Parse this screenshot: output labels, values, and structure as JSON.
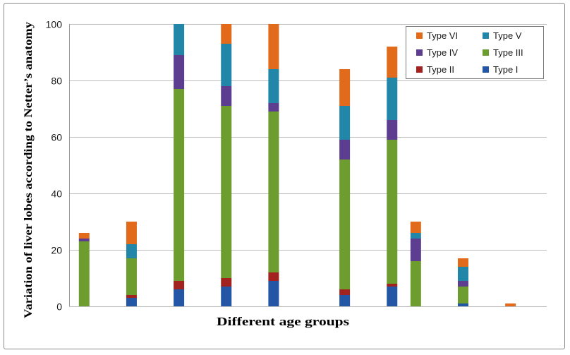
{
  "chart_data": {
    "type": "bar",
    "stacked": true,
    "xlabel": "Different age groups",
    "ylabel": "Variation of liver lobes according to Netter’s anatomy",
    "ylim": [
      0,
      100
    ],
    "yticks": [
      0,
      20,
      40,
      60,
      80,
      100
    ],
    "grid": true,
    "legend": "top-right",
    "categories": [
      "",
      "",
      "",
      "",
      "",
      "",
      "",
      "",
      "",
      "",
      "",
      "",
      "",
      "",
      "",
      "",
      "",
      "",
      "",
      ""
    ],
    "series": [
      {
        "name": "Type I",
        "color": "#2356A5",
        "values": [
          0,
          0,
          3,
          0,
          6,
          0,
          7,
          0,
          9,
          0,
          0,
          4,
          0,
          7,
          0,
          0,
          1,
          0,
          0,
          0
        ]
      },
      {
        "name": "Type II",
        "color": "#A2221F",
        "values": [
          0,
          0,
          1,
          0,
          3,
          0,
          3,
          0,
          3,
          0,
          0,
          2,
          0,
          1,
          0,
          0,
          0,
          0,
          0,
          0
        ]
      },
      {
        "name": "Type III",
        "color": "#6D9D2E",
        "values": [
          23,
          0,
          13,
          0,
          68,
          0,
          61,
          0,
          57,
          0,
          0,
          46,
          0,
          51,
          16,
          0,
          6,
          0,
          0,
          0
        ]
      },
      {
        "name": "Type IV",
        "color": "#5C3D8F",
        "values": [
          1,
          0,
          0,
          0,
          12,
          0,
          7,
          0,
          3,
          0,
          0,
          7,
          0,
          7,
          8,
          0,
          2,
          0,
          0,
          0
        ]
      },
      {
        "name": "Type V",
        "color": "#2286A8",
        "values": [
          0,
          0,
          5,
          0,
          11,
          0,
          15,
          0,
          12,
          0,
          0,
          12,
          0,
          15,
          2,
          0,
          5,
          0,
          0,
          0
        ]
      },
      {
        "name": "Type VI",
        "color": "#E26B1B",
        "values": [
          2,
          0,
          8,
          0,
          0,
          0,
          7,
          0,
          16,
          0,
          0,
          13,
          0,
          11,
          4,
          0,
          3,
          0,
          1,
          0
        ]
      }
    ]
  }
}
